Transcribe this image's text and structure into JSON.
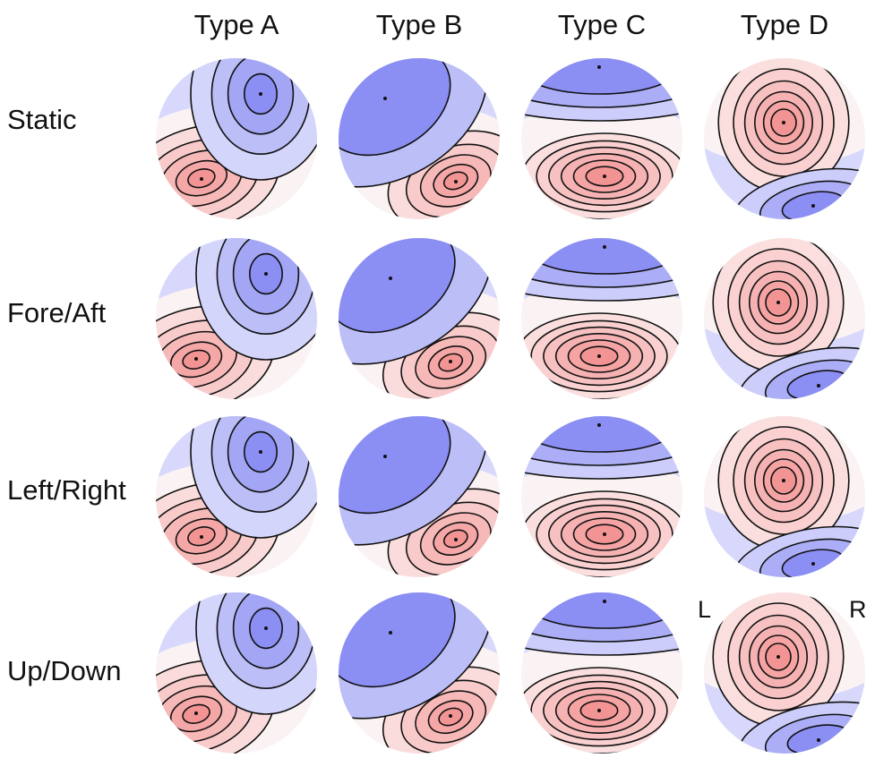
{
  "columns": [
    "Type A",
    "Type B",
    "Type C",
    "Type D"
  ],
  "rows": [
    "Static",
    "Fore/Aft",
    "Left/Right",
    "Up/Down"
  ],
  "orientation": {
    "left": "L",
    "right": "R"
  },
  "colors": {
    "positive": "#f07a7a",
    "negative": "#6f73f0",
    "neutral": "#ffffff",
    "contour": "#111111"
  },
  "maps": [
    [
      {
        "pattern": "left-frontal-negative / left-posterior-positive"
      },
      {
        "pattern": "frontal-negative / right-posterior-positive"
      },
      {
        "pattern": "frontal-negative / central-posterior-positive"
      },
      {
        "pattern": "central-positive / posterior-negative"
      }
    ],
    [
      {
        "pattern": "left-frontal-negative / left-posterior-positive"
      },
      {
        "pattern": "frontal-negative / right-posterior-positive"
      },
      {
        "pattern": "frontal-negative / central-posterior-positive"
      },
      {
        "pattern": "central-positive / posterior-negative"
      }
    ],
    [
      {
        "pattern": "left-frontal-negative / left-posterior-positive"
      },
      {
        "pattern": "frontal-negative / right-posterior-positive"
      },
      {
        "pattern": "frontal-negative / central-posterior-positive"
      },
      {
        "pattern": "central-positive / posterior-negative"
      }
    ],
    [
      {
        "pattern": "left-frontal-negative / left-posterior-positive"
      },
      {
        "pattern": "frontal-negative / right-posterior-positive"
      },
      {
        "pattern": "frontal-negative / central-posterior-positive"
      },
      {
        "pattern": "central-positive / posterior-negative"
      }
    ]
  ]
}
